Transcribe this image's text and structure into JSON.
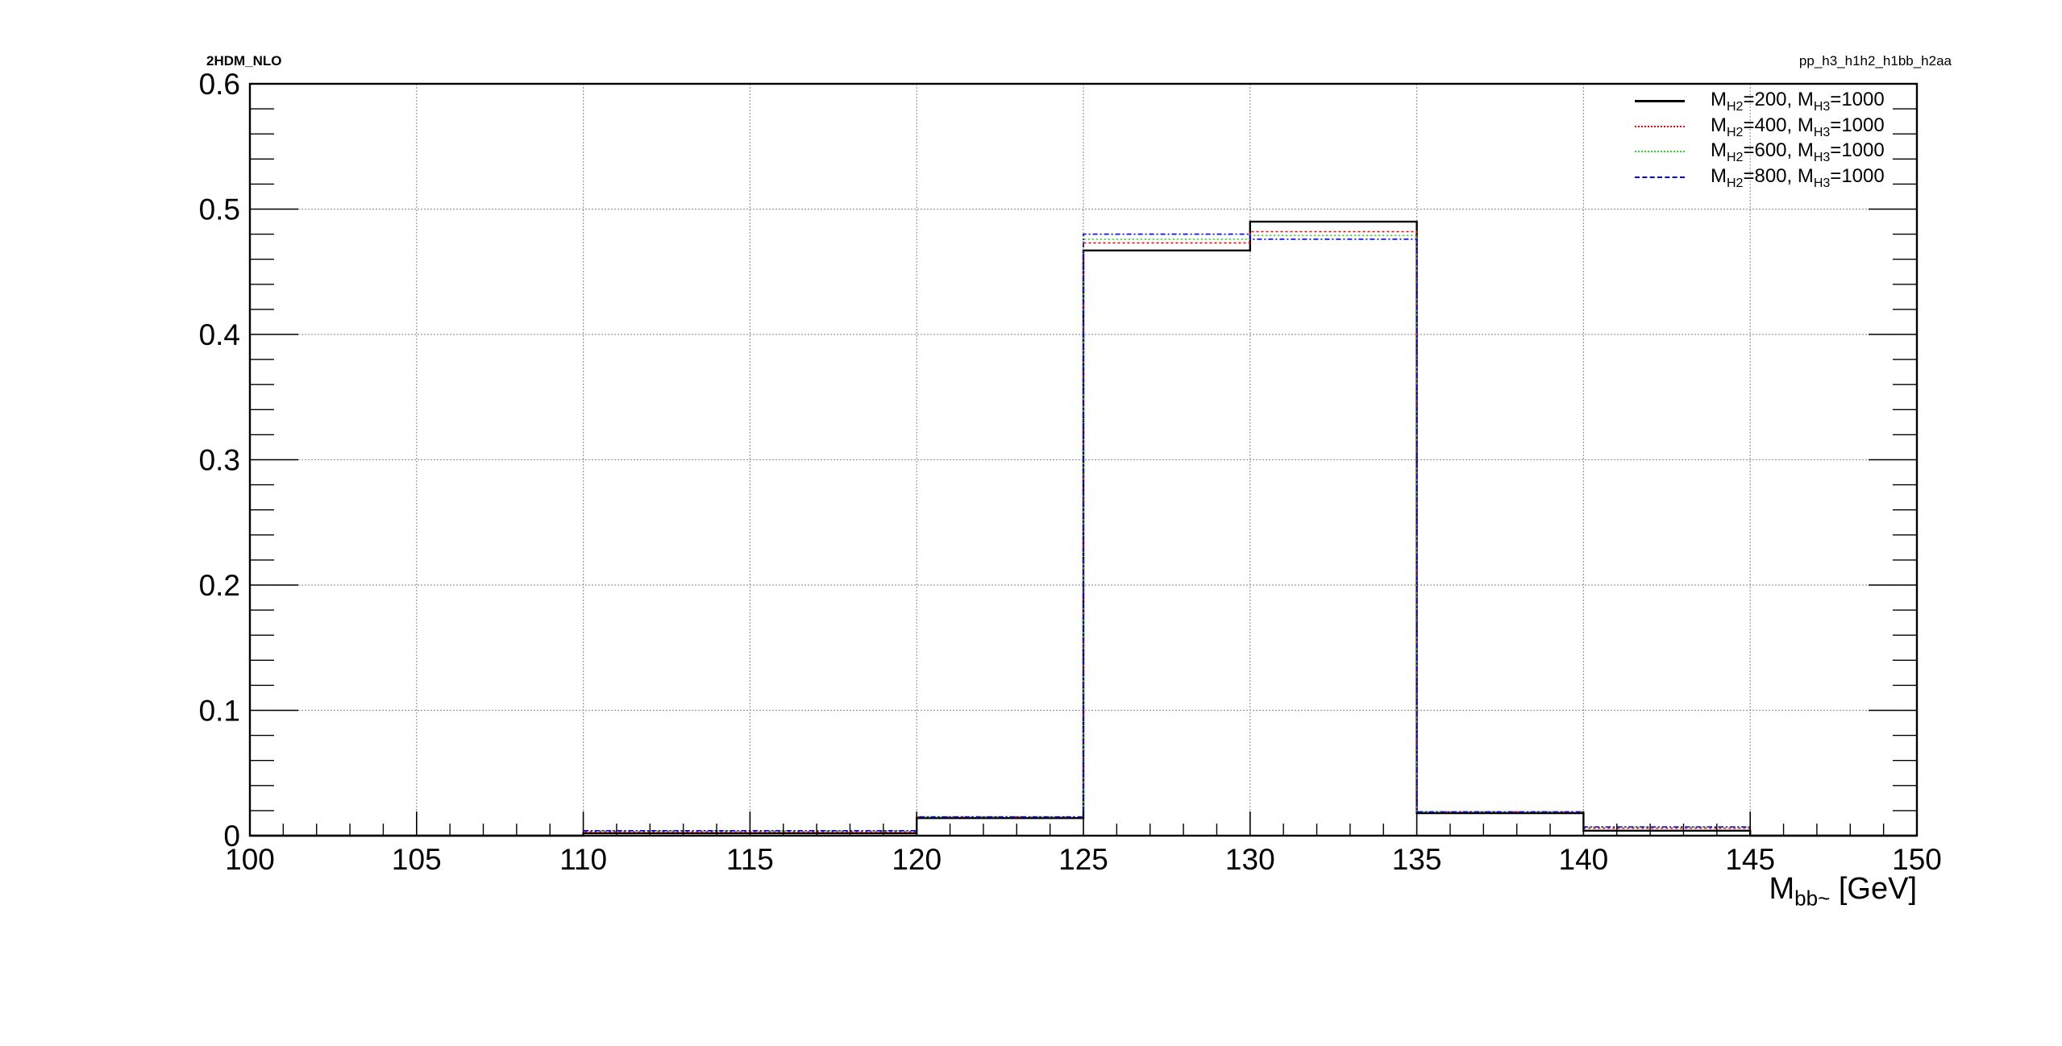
{
  "header": {
    "left_label": "2HDM_NLO",
    "right_label": "pp_h3_h1h2_h1bb_h2aa"
  },
  "chart_data": {
    "type": "line",
    "title": "",
    "xlabel": "M",
    "xlabel_sub": "bb~",
    "xlabel_unit": "[GeV]",
    "ylabel": "",
    "xlim": [
      100,
      150
    ],
    "ylim": [
      0,
      0.6
    ],
    "grid": true,
    "legend_placement": "top-right",
    "x_ticks": [
      100,
      105,
      110,
      115,
      120,
      125,
      130,
      135,
      140,
      145,
      150
    ],
    "y_ticks": [
      0,
      0.1,
      0.2,
      0.3,
      0.4,
      0.5,
      0.6
    ],
    "bin_edges": [
      100,
      105,
      110,
      115,
      120,
      125,
      130,
      135,
      140,
      145,
      150
    ],
    "series": [
      {
        "label_parts": [
          "M",
          "H2",
          "=200, M",
          "H3",
          "=1000"
        ],
        "color": "#000000",
        "dash": "",
        "width": 2.4,
        "values": [
          0,
          0,
          0.002,
          0.002,
          0.014,
          0.467,
          0.49,
          0.018,
          0.004,
          0,
          0
        ]
      },
      {
        "label_parts": [
          "M",
          "H2",
          "=400, M",
          "H3",
          "=1000"
        ],
        "color": "#ff0000",
        "dash": "3,3",
        "width": 1.6,
        "values": [
          0,
          0,
          0.003,
          0.003,
          0.015,
          0.473,
          0.482,
          0.019,
          0.006,
          0,
          0
        ]
      },
      {
        "label_parts": [
          "M",
          "H2",
          "=600, M",
          "H3",
          "=1000"
        ],
        "color": "#22dd22",
        "dash": "2,3",
        "width": 1.6,
        "values": [
          0,
          0,
          0.004,
          0.004,
          0.015,
          0.476,
          0.479,
          0.019,
          0.007,
          0,
          0
        ]
      },
      {
        "label_parts": [
          "M",
          "H2",
          "=800, M",
          "H3",
          "=1000"
        ],
        "color": "#0000ff",
        "dash": "6,3,2,3",
        "width": 1.6,
        "values": [
          0,
          0,
          0.004,
          0.004,
          0.015,
          0.48,
          0.476,
          0.019,
          0.007,
          0,
          0
        ]
      }
    ]
  }
}
